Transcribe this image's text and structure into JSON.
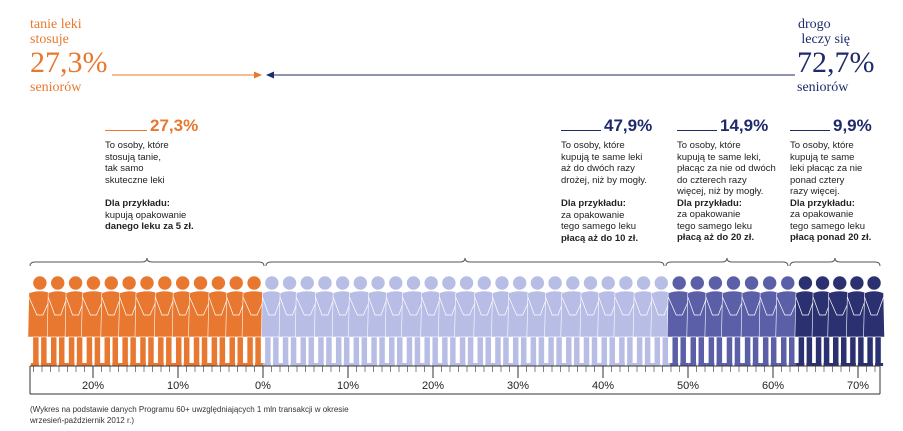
{
  "left_label": {
    "line1": "tanie leki",
    "line2": "stosuje",
    "value": "27,3%",
    "line3": "seniorów",
    "color": "#e8782f"
  },
  "right_label": {
    "line1": "drogo",
    "line2": "leczy się",
    "value": "72,7%",
    "line3": "seniorów",
    "color": "#1f2a6b"
  },
  "groups": [
    {
      "pct": "27,3%",
      "color": "#e8782f",
      "lines": [
        "To osoby, które",
        "stosują tanie,",
        "tak samo",
        "skuteczne leki"
      ],
      "example_head": "Dla przykładu:",
      "example_lines": [
        "kupują opakowanie"
      ],
      "example_bold": "danego leku za 5 zł."
    },
    {
      "pct": "47,9%",
      "color": "#1f2a6b",
      "lines": [
        "To osoby, które",
        "kupują te same leki",
        "aż do dwóch razy",
        "drożej, niż by mogły."
      ],
      "example_head": "Dla przykładu:",
      "example_lines": [
        "za opakowanie",
        "tego samego leku"
      ],
      "example_bold": "płacą aż do 10 zł."
    },
    {
      "pct": "14,9%",
      "color": "#1f2a6b",
      "lines": [
        "To osoby, które",
        "kupują te same leki,",
        "płacąc za nie od dwóch",
        "do czterech razy",
        "więcej, niż by mogły."
      ],
      "example_head": "Dla przykładu:",
      "example_lines": [
        "za opakowanie",
        "tego samego leku"
      ],
      "example_bold": "płacą aż do 20 zł."
    },
    {
      "pct": "9,9%",
      "color": "#1f2a6b",
      "lines": [
        "To osoby, które",
        "kupują te same",
        "leki płacąc za nie",
        "ponad cztery",
        "razy więcej."
      ],
      "example_head": "Dla przykładu:",
      "example_lines": [
        "za opakowanie",
        "tego samego leku"
      ],
      "example_bold": "płacą ponad 20 zł."
    }
  ],
  "chart_data": {
    "type": "bar",
    "orientation": "horizontal",
    "categories": [
      "tanie leki stosuje",
      "drogo leczy się"
    ],
    "series": [
      {
        "name": "tanie leki stosuje",
        "values": [
          27.3,
          0
        ],
        "color": "#e8782f"
      },
      {
        "name": "aż do dwóch razy drożej",
        "values": [
          0,
          47.9
        ],
        "color": "#b8bde6"
      },
      {
        "name": "od dwóch do czterech razy więcej",
        "values": [
          0,
          14.9
        ],
        "color": "#5a5fa8"
      },
      {
        "name": "ponad cztery razy więcej",
        "values": [
          0,
          9.9
        ],
        "color": "#2b3170"
      }
    ],
    "x_ticks_left": [
      "20%",
      "10%",
      "0%"
    ],
    "x_ticks_right": [
      "10%",
      "20%",
      "30%",
      "40%",
      "50%",
      "60%",
      "70%"
    ],
    "zero_at": "0%"
  },
  "footnote": [
    "(Wykres na podstawie danych Programu 60+ uwzględniających 1 mln transakcji w okresie",
    "wrzesień-październik 2012 r.)"
  ]
}
